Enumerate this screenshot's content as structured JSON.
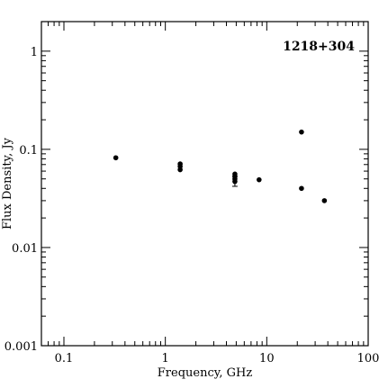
{
  "chart_data": {
    "type": "scatter",
    "title": "1218+304",
    "xlabel": "Frequency, GHz",
    "ylabel": "Flux Density, Jy",
    "xscale": "log",
    "yscale": "log",
    "xlim": [
      0.06,
      100
    ],
    "ylim": [
      0.001,
      2
    ],
    "xticks": [
      {
        "value": 0.1,
        "label": "0.1"
      },
      {
        "value": 1,
        "label": "1"
      },
      {
        "value": 10,
        "label": "10"
      },
      {
        "value": 100,
        "label": "100"
      }
    ],
    "yticks": [
      {
        "value": 0.001,
        "label": "0.001"
      },
      {
        "value": 0.01,
        "label": "0.01"
      },
      {
        "value": 0.1,
        "label": "0.1"
      },
      {
        "value": 1,
        "label": "1"
      }
    ],
    "grid": false,
    "points": [
      {
        "x": 0.325,
        "y": 0.082
      },
      {
        "x": 1.4,
        "y": 0.071
      },
      {
        "x": 1.4,
        "y": 0.067
      },
      {
        "x": 1.4,
        "y": 0.062
      },
      {
        "x": 4.85,
        "y": 0.056
      },
      {
        "x": 4.85,
        "y": 0.053
      },
      {
        "x": 4.85,
        "y": 0.05
      },
      {
        "x": 4.85,
        "y": 0.047,
        "yerr_low": 0.042,
        "yerr_high": 0.053
      },
      {
        "x": 8.4,
        "y": 0.049
      },
      {
        "x": 22,
        "y": 0.15
      },
      {
        "x": 22,
        "y": 0.04
      },
      {
        "x": 37,
        "y": 0.03
      }
    ]
  }
}
